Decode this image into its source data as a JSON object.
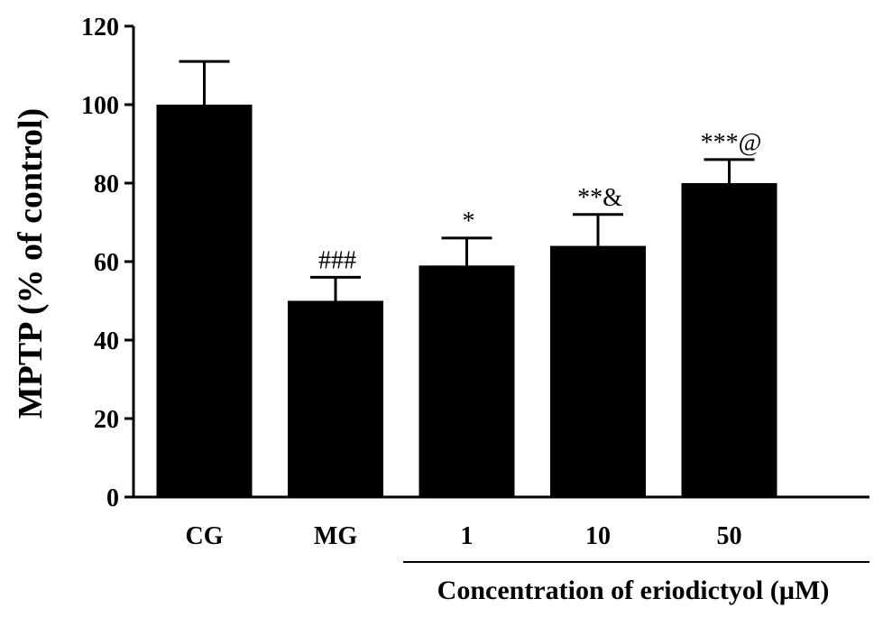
{
  "chart_data": {
    "type": "bar",
    "title": "",
    "ylabel": "MPTP (% of control)",
    "xlabel": "",
    "ylim": [
      0,
      120
    ],
    "yticks": [
      0,
      20,
      40,
      60,
      80,
      100,
      120
    ],
    "categories": [
      "CG",
      "MG",
      "1",
      "10",
      "50"
    ],
    "values": [
      100,
      50,
      59,
      64,
      80
    ],
    "errors": [
      11,
      6,
      7,
      8,
      6
    ],
    "annotations": [
      "",
      "###",
      "*",
      "**&",
      "***@"
    ],
    "group_label": "Concentration of eriodictyol (µM)",
    "group_categories": [
      "1",
      "10",
      "50"
    ],
    "grid": false,
    "bar_color": "#000000"
  }
}
